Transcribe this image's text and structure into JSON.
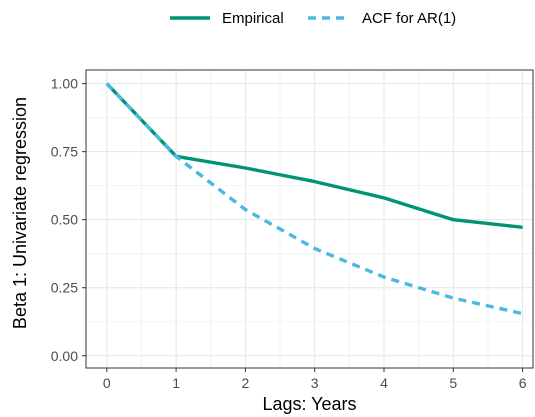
{
  "chart_data": {
    "type": "line",
    "xlabel": "Lags: Years",
    "ylabel": "Beta 1: Univariate regression",
    "xlim": [
      -0.3,
      6.15
    ],
    "ylim": [
      -0.045,
      1.05
    ],
    "x_ticks": [
      0,
      1,
      2,
      3,
      4,
      5,
      6
    ],
    "x_tick_labels": [
      "0",
      "1",
      "2",
      "3",
      "4",
      "5",
      "6"
    ],
    "y_ticks": [
      0,
      0.25,
      0.5,
      0.75,
      1
    ],
    "y_tick_labels": [
      "0.00",
      "0.25",
      "0.50",
      "0.75",
      "1.00"
    ],
    "grid": true,
    "legend_position": "top",
    "series": [
      {
        "name": "Empirical",
        "color": "#009473",
        "dash": "solid",
        "x": [
          0,
          1,
          2,
          3,
          4,
          5,
          6
        ],
        "y": [
          1.0,
          0.733,
          0.69,
          0.64,
          0.58,
          0.5,
          0.472
        ]
      },
      {
        "name": "ACF for AR(1)",
        "color": "#4cb8e0",
        "dash": "dashed",
        "x": [
          0,
          1,
          2,
          3,
          4,
          5,
          6
        ],
        "y": [
          1.0,
          0.733,
          0.537,
          0.394,
          0.289,
          0.212,
          0.155
        ]
      }
    ]
  }
}
